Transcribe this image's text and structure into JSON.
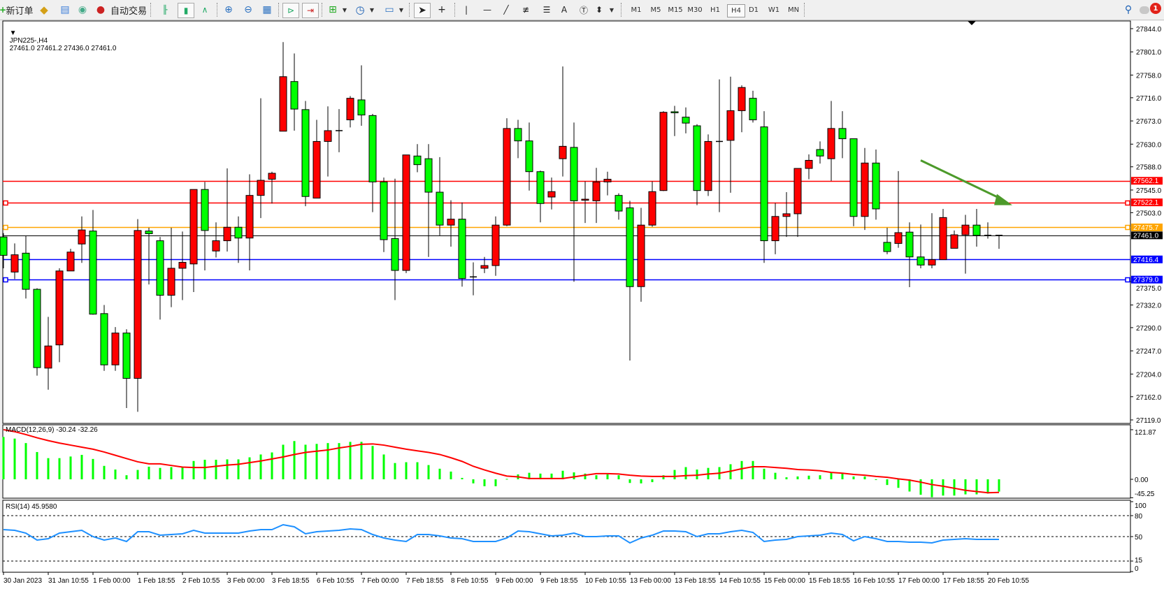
{
  "toolbar": {
    "new_order_label": "新订单",
    "auto_trading_label": "自动交易",
    "timeframes": [
      "M1",
      "M5",
      "M15",
      "M30",
      "H1",
      "H4",
      "D1",
      "W1",
      "MN"
    ],
    "active_timeframe": "H4",
    "notification_count": "1",
    "icons": [
      "new-order-icon",
      "gold-icon",
      "market-watch-icon",
      "signals-icon",
      "auto-trading-icon",
      "bar-chart-icon",
      "candlestick-icon",
      "line-chart-icon",
      "zoom-in-icon",
      "zoom-out-icon",
      "tile-windows-icon",
      "auto-scroll-icon",
      "chart-shift-icon",
      "indicators-icon",
      "periods-icon",
      "templates-icon",
      "cursor-icon",
      "crosshair-icon",
      "vertical-line-icon",
      "horizontal-line-icon",
      "trendline-icon",
      "fibonacci-icon",
      "fibonacci-fan-icon",
      "text-icon",
      "label-icon",
      "arrows-icon",
      "search-icon",
      "notification-icon"
    ]
  },
  "chart": {
    "symbol": "JPN225-,H4",
    "ohlc": "27461.0 27461.2 27436.0 27461.0"
  },
  "chart_data": {
    "type": "candlestick",
    "up_color": "#ff0000",
    "down_color": "#00ff00",
    "doji_color": "#000000",
    "ohlc_order": [
      "open",
      "high",
      "low",
      "close"
    ],
    "candles": [
      [
        27458,
        27465,
        27400,
        27424
      ],
      [
        27393,
        27446,
        27380,
        27425
      ],
      [
        27428,
        27460,
        27344,
        27361
      ],
      [
        27361,
        27363,
        27201,
        27216
      ],
      [
        27215,
        27310,
        27175,
        27256
      ],
      [
        27258,
        27400,
        27226,
        27395
      ],
      [
        27395,
        27436,
        27395,
        27430
      ],
      [
        27445,
        27496,
        27410,
        27471
      ],
      [
        27469,
        27508,
        27314,
        27315
      ],
      [
        27316,
        27332,
        27210,
        27221
      ],
      [
        27221,
        27291,
        27210,
        27280
      ],
      [
        27280,
        27287,
        27141,
        27196
      ],
      [
        27196,
        27491,
        27134,
        27470
      ],
      [
        27469,
        27475,
        27370,
        27464
      ],
      [
        27451,
        27458,
        27305,
        27350
      ],
      [
        27350,
        27475,
        27328,
        27400
      ],
      [
        27400,
        27468,
        27341,
        27411
      ],
      [
        27408,
        27546,
        27356,
        27546
      ],
      [
        27546,
        27560,
        27396,
        27470
      ],
      [
        27432,
        27485,
        27420,
        27451
      ],
      [
        27451,
        27585,
        27431,
        27476
      ],
      [
        27476,
        27496,
        27410,
        27456
      ],
      [
        27456,
        27574,
        27396,
        27535
      ],
      [
        27535,
        27715,
        27493,
        27563
      ],
      [
        27565,
        27579,
        27520,
        27576
      ],
      [
        27654,
        27819,
        27654,
        27755
      ],
      [
        27746,
        27798,
        27655,
        27695
      ],
      [
        27694,
        27710,
        27515,
        27533
      ],
      [
        27530,
        27675,
        27530,
        27635
      ],
      [
        27635,
        27700,
        27570,
        27655
      ],
      [
        27655,
        27695,
        27615,
        27655
      ],
      [
        27675,
        27719,
        27661,
        27715
      ],
      [
        27712,
        27776,
        27664,
        27684
      ],
      [
        27683,
        27686,
        27504,
        27560
      ],
      [
        27560,
        27568,
        27430,
        27453
      ],
      [
        27455,
        27566,
        27341,
        27396
      ],
      [
        27396,
        27610,
        27391,
        27610
      ],
      [
        27608,
        27630,
        27578,
        27592
      ],
      [
        27603,
        27630,
        27421,
        27541
      ],
      [
        27541,
        27606,
        27461,
        27480
      ],
      [
        27480,
        27526,
        27440,
        27491
      ],
      [
        27491,
        27522,
        27366,
        27381
      ],
      [
        27384,
        27411,
        27350,
        27384
      ],
      [
        27400,
        27421,
        27391,
        27405
      ],
      [
        27405,
        27496,
        27386,
        27480
      ],
      [
        27480,
        27678,
        27478,
        27659
      ],
      [
        27659,
        27675,
        27604,
        27636
      ],
      [
        27636,
        27670,
        27544,
        27579
      ],
      [
        27579,
        27581,
        27485,
        27520
      ],
      [
        27532,
        27568,
        27509,
        27542
      ],
      [
        27603,
        27774,
        27570,
        27626
      ],
      [
        27624,
        27670,
        27375,
        27525
      ],
      [
        27526,
        27561,
        27484,
        27528
      ],
      [
        27525,
        27586,
        27484,
        27560
      ],
      [
        27560,
        27579,
        27535,
        27565
      ],
      [
        27535,
        27539,
        27490,
        27506
      ],
      [
        27512,
        27525,
        27229,
        27366
      ],
      [
        27366,
        27512,
        27338,
        27480
      ],
      [
        27480,
        27561,
        27477,
        27542
      ],
      [
        27544,
        27691,
        27543,
        27689
      ],
      [
        27690,
        27701,
        27645,
        27688
      ],
      [
        27680,
        27698,
        27650,
        27669
      ],
      [
        27664,
        27667,
        27517,
        27544
      ],
      [
        27544,
        27648,
        27534,
        27635
      ],
      [
        27635,
        27750,
        27504,
        27635
      ],
      [
        27637,
        27755,
        27540,
        27692
      ],
      [
        27692,
        27739,
        27652,
        27735
      ],
      [
        27715,
        27729,
        27670,
        27675
      ],
      [
        27662,
        27691,
        27410,
        27451
      ],
      [
        27451,
        27521,
        27426,
        27496
      ],
      [
        27496,
        27541,
        27458,
        27501
      ],
      [
        27501,
        27585,
        27458,
        27585
      ],
      [
        27585,
        27611,
        27565,
        27600
      ],
      [
        27620,
        27635,
        27594,
        27608
      ],
      [
        27603,
        27710,
        27562,
        27659
      ],
      [
        27659,
        27691,
        27604,
        27640
      ],
      [
        27640,
        27640,
        27478,
        27496
      ],
      [
        27496,
        27623,
        27471,
        27595
      ],
      [
        27595,
        27620,
        27490,
        27510
      ],
      [
        27448,
        27475,
        27426,
        27431
      ],
      [
        27446,
        27580,
        27438,
        27466
      ],
      [
        27467,
        27485,
        27365,
        27421
      ],
      [
        27421,
        27481,
        27400,
        27406
      ],
      [
        27406,
        27502,
        27400,
        27416
      ],
      [
        27416,
        27510,
        27416,
        27494
      ],
      [
        27437,
        27470,
        27437,
        27462
      ],
      [
        27462,
        27499,
        27390,
        27480
      ],
      [
        27480,
        27510,
        27440,
        27461
      ],
      [
        27461,
        27485,
        27455,
        27461
      ],
      [
        27461,
        27461.2,
        27436,
        27461
      ]
    ],
    "ylim": [
      27119,
      27844
    ],
    "price_ticks": [
      "27844.0",
      "27801.0",
      "27758.0",
      "27716.0",
      "27673.0",
      "27630.0",
      "27588.0",
      "27545.0",
      "27503.0",
      "27375.0",
      "27332.0",
      "27290.0",
      "27247.0",
      "27204.0",
      "27162.0",
      "27119.0"
    ],
    "time_labels": [
      "30 Jan 2023",
      "31 Jan 10:55",
      "1 Feb 00:00",
      "1 Feb 18:55",
      "2 Feb 10:55",
      "3 Feb 00:00",
      "3 Feb 18:55",
      "6 Feb 10:55",
      "7 Feb 00:00",
      "7 Feb 18:55",
      "8 Feb 10:55",
      "9 Feb 00:00",
      "9 Feb 18:55",
      "10 Feb 10:55",
      "13 Feb 00:00",
      "13 Feb 18:55",
      "14 Feb 10:55",
      "15 Feb 00:00",
      "15 Feb 18:55",
      "16 Feb 10:55",
      "17 Feb 00:00",
      "17 Feb 18:55",
      "20 Feb 10:55"
    ],
    "time_label_every_bars": 4,
    "current_price": {
      "price": 27461.0,
      "label": "27461.0",
      "color": "#000000"
    },
    "horizontal_lines": [
      {
        "price": 27562.1,
        "label": "27562.1",
        "color": "#ff0000",
        "anchors": false
      },
      {
        "price": 27522.1,
        "label": "27522.1",
        "color": "#ff0000",
        "anchors": true
      },
      {
        "price": 27475.7,
        "label": "27475.7",
        "color": "#ffa500",
        "anchors": true
      },
      {
        "price": 27416.4,
        "label": "27416.4",
        "color": "#0000ff",
        "anchors": false
      },
      {
        "price": 27379.0,
        "label": "27379.0",
        "color": "#0000ff",
        "anchors": true
      }
    ],
    "arrow": {
      "from": {
        "bar": 83,
        "price": 27600
      },
      "to": {
        "bar": 90,
        "price": 27517
      },
      "color": "#4c9a2a"
    },
    "macd": {
      "label": "MACD(12,26,9) -30.24 -32.26",
      "ticks": [
        "121.87",
        "0.00",
        "-45.25"
      ],
      "range": [
        -45.25,
        121.87
      ],
      "histogram_color": "#00ff00",
      "signal_color": "#ff0000",
      "histogram": [
        104,
        100,
        89,
        67,
        52,
        52,
        56,
        60,
        50,
        33,
        24,
        10,
        23,
        31,
        28,
        30,
        30,
        45,
        48,
        48,
        49,
        49,
        54,
        61,
        66,
        85,
        94,
        85,
        87,
        89,
        89,
        92,
        92,
        82,
        61,
        40,
        42,
        42,
        35,
        26,
        19,
        3.5,
        -10,
        -17,
        -17,
        1,
        12,
        16,
        14,
        14,
        21,
        17,
        14,
        10,
        12,
        10,
        -9,
        -10,
        -7,
        10,
        23,
        30,
        24,
        28,
        30,
        37,
        45,
        45,
        26,
        16,
        5,
        7,
        9,
        10,
        16,
        16,
        7,
        7,
        -1,
        -14,
        -21,
        -30,
        -38,
        -44,
        -40,
        -40,
        -37,
        -37,
        -35,
        -30.24
      ],
      "signal": [
        122,
        117,
        110,
        102,
        95,
        89,
        84,
        79,
        74,
        67,
        59,
        51,
        43,
        38,
        38,
        34,
        30,
        29,
        29,
        32,
        35,
        37,
        41,
        45,
        50,
        55,
        61,
        66,
        69,
        72,
        77,
        81,
        86,
        87,
        84,
        79,
        74,
        70,
        66,
        61,
        53,
        44,
        32,
        23,
        15,
        8,
        6,
        2,
        2,
        2,
        2,
        6,
        10,
        14,
        14,
        13,
        10,
        8,
        7,
        7,
        7,
        9,
        10,
        13,
        15,
        20,
        26,
        31,
        31,
        29,
        27,
        24,
        23,
        21,
        17,
        15,
        12,
        10,
        7,
        5,
        1,
        -2,
        -7,
        -13,
        -17,
        -22,
        -27,
        -30,
        -33,
        -32.26
      ]
    },
    "rsi": {
      "label": "RSI(14) 45.9580",
      "ticks": [
        "100",
        "80",
        "50",
        "15",
        "0"
      ],
      "levels": [
        80,
        50,
        15
      ],
      "color": "#1e90ff",
      "values": [
        60,
        59,
        55,
        45,
        47,
        55,
        57,
        59,
        50,
        45,
        48,
        43,
        57,
        57,
        52,
        53,
        54,
        59,
        55,
        55,
        55,
        55,
        58,
        60,
        60,
        67,
        64,
        54,
        57,
        58,
        59,
        61,
        60,
        53,
        48,
        45,
        43,
        53,
        53,
        51,
        48,
        47,
        43,
        43,
        43,
        48,
        58,
        57,
        54,
        51,
        52,
        55,
        50,
        50,
        51,
        51,
        41,
        48,
        52,
        58,
        58,
        57,
        50,
        54,
        54,
        57,
        59,
        56,
        43,
        45,
        46,
        50,
        51,
        52,
        55,
        53,
        44,
        50,
        47,
        43,
        43,
        42,
        42,
        41,
        45,
        46,
        47,
        46,
        46,
        45.958
      ]
    }
  }
}
